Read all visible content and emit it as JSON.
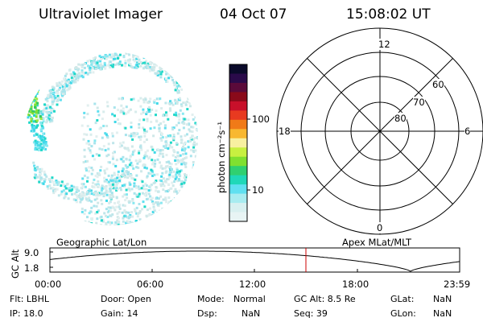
{
  "header": {
    "title": "Ultraviolet Imager",
    "date": "04 Oct 07",
    "time": "15:08:02 UT"
  },
  "colorbar": {
    "unit_label": "photon cm⁻²s⁻¹",
    "ticks": [
      "100",
      "10"
    ],
    "colors": [
      "#0a0a2a",
      "#2a0a4a",
      "#5a0a3a",
      "#8a0a1a",
      "#c8102a",
      "#e83a20",
      "#f07a18",
      "#f8b830",
      "#f8f0a0",
      "#c8f040",
      "#80e030",
      "#30d070",
      "#20d8b8",
      "#60e0f0",
      "#a8ecf0",
      "#d8f0f0",
      "#e8f4f4"
    ]
  },
  "polar_plot": {
    "mlt_labels": {
      "top": "12",
      "left": "18",
      "right": "6",
      "bottom": "0"
    },
    "lat_labels": [
      "60",
      "70",
      "80"
    ]
  },
  "timeline": {
    "left_label": "Geographic Lat/Lon",
    "right_label": "Apex MLat/MLT",
    "y_axis_title": "GC Alt",
    "y_ticks": [
      "9.0",
      "1.8"
    ],
    "x_ticks": [
      "00:00",
      "06:00",
      "12:00",
      "18:00",
      "23:59"
    ],
    "current_time_color": "#cc0000"
  },
  "status": {
    "flt": "Flt: LBHL",
    "ip": "IP: 18.0",
    "door": "Door: Open",
    "gain": "Gain: 14",
    "mode_label": "Mode:",
    "mode_value": "Normal",
    "dsp_label": "Dsp:",
    "dsp_value": "NaN",
    "gcalt": "GC Alt: 8.5 Re",
    "seq": "Seq: 39",
    "glat_label": "GLat:",
    "glat_value": "NaN",
    "glon_label": "GLon:",
    "glon_value": "NaN"
  }
}
